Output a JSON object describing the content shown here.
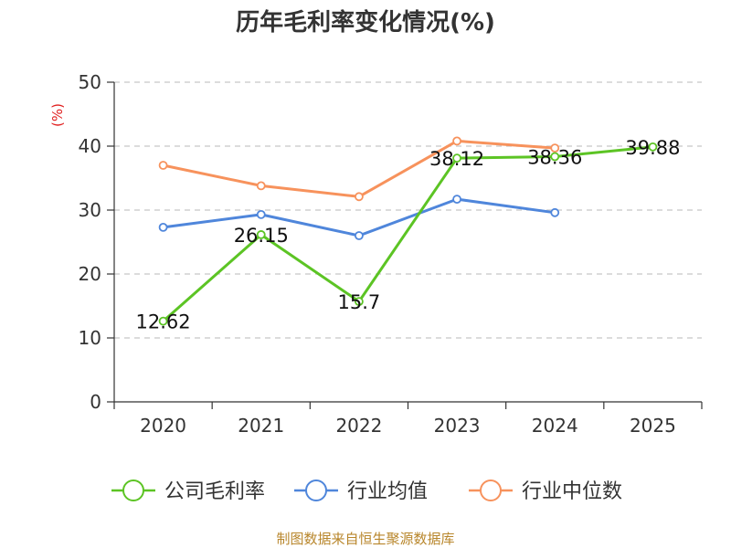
{
  "chart_data": {
    "type": "line",
    "title": "历年毛利率变化情况(%)",
    "ylabel": "(%)",
    "categories": [
      "2020",
      "2021",
      "2022",
      "2023",
      "2024",
      "2025"
    ],
    "ylim": [
      0,
      50
    ],
    "yticks": [
      "0",
      "10",
      "20",
      "30",
      "40",
      "50"
    ],
    "grid": true,
    "legend_position": "bottom",
    "series": [
      {
        "name": "公司毛利率",
        "color": "#5cc424",
        "values": [
          12.62,
          26.15,
          15.7,
          38.12,
          38.36,
          39.88
        ],
        "labels": [
          "12.62",
          "26.15",
          "15.7",
          "38.12",
          "38.36",
          "39.88"
        ]
      },
      {
        "name": "行业均值",
        "color": "#4f86db",
        "values": [
          27.3,
          29.3,
          26.0,
          31.7,
          29.6,
          null
        ]
      },
      {
        "name": "行业中位数",
        "color": "#f7925c",
        "values": [
          37.0,
          33.8,
          32.1,
          40.8,
          39.7,
          null
        ]
      }
    ]
  },
  "source": "制图数据来自恒生聚源数据库"
}
